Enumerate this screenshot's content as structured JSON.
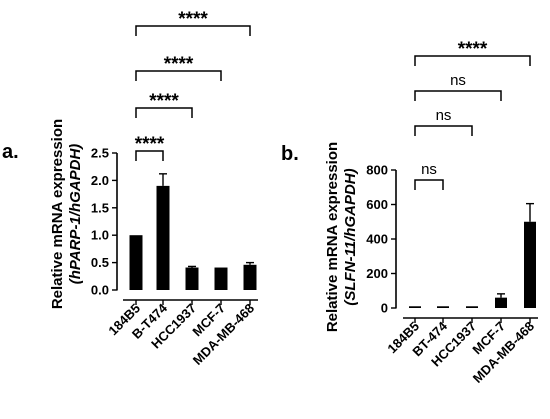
{
  "chart_data": [
    {
      "panel_label": "a.",
      "type": "bar",
      "ylabel_line1": "Relative mRNA expression",
      "ylabel_line2": "(hPARP-1/hGAPDH)",
      "categories": [
        "184B5",
        "B-T474",
        "HCC1937",
        "MCF-7",
        "MDA-MB-468"
      ],
      "values": [
        1.0,
        1.9,
        0.41,
        0.41,
        0.46
      ],
      "errors": [
        0.0,
        0.22,
        0.02,
        0.0,
        0.04
      ],
      "ylim": [
        0,
        2.5
      ],
      "yticks": [
        "0.0",
        "0.5",
        "1.0",
        "1.5",
        "2.0",
        "2.5"
      ],
      "comparisons": [
        {
          "from": 0,
          "to": 1,
          "label": "****"
        },
        {
          "from": 0,
          "to": 2,
          "label": "****"
        },
        {
          "from": 0,
          "to": 3,
          "label": "****"
        },
        {
          "from": 0,
          "to": 4,
          "label": "****"
        }
      ]
    },
    {
      "panel_label": "b.",
      "type": "bar",
      "ylabel_line1": "Relative mRNA expression",
      "ylabel_line2": "(SLFN-11/hGAPDH)",
      "categories": [
        "184B5",
        "BT-474",
        "HCC1937",
        "MCF-7",
        "MDA-MB-468"
      ],
      "values": [
        10,
        10,
        10,
        60,
        500
      ],
      "errors": [
        0,
        0,
        0,
        22,
        105
      ],
      "ylim": [
        0,
        800
      ],
      "yticks": [
        "0",
        "200",
        "400",
        "600",
        "800"
      ],
      "comparisons": [
        {
          "from": 0,
          "to": 1,
          "label": "ns"
        },
        {
          "from": 0,
          "to": 2,
          "label": "ns"
        },
        {
          "from": 0,
          "to": 3,
          "label": "ns"
        },
        {
          "from": 0,
          "to": 4,
          "label": "****"
        }
      ]
    }
  ]
}
